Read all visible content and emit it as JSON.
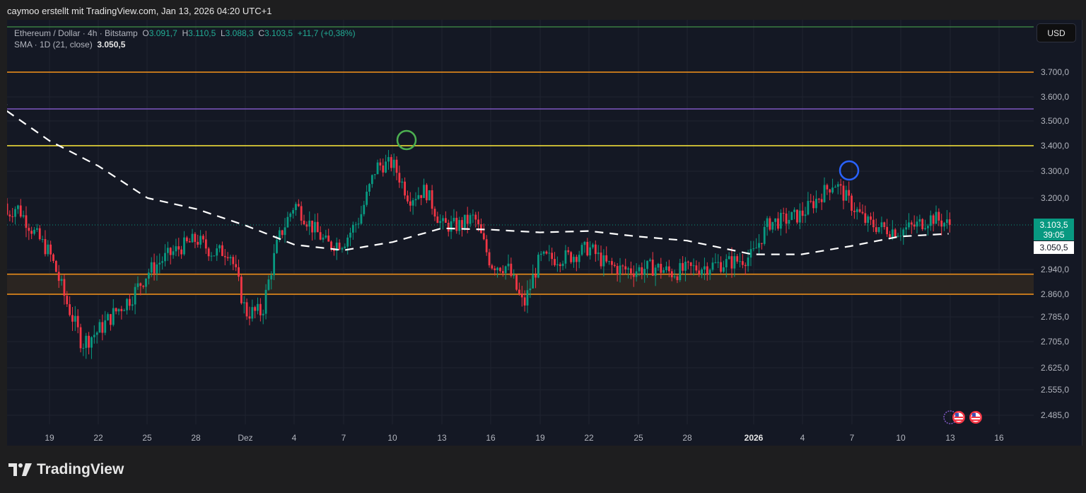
{
  "caption": "caymoo erstellt mit TradingView.com, Jan 13, 2026 04:20 UTC+1",
  "legend": {
    "symbol": "Ethereum / Dollar · 4h · Bitstamp",
    "open_label": "O",
    "open": "3.091,7",
    "high_label": "H",
    "high": "3.110,5",
    "low_label": "L",
    "low": "3.088,3",
    "close_label": "C",
    "close": "3.103,5",
    "change": "+11,7 (+0,38%)",
    "sma_label": "SMA · 1D (21, close)",
    "sma_value": "3.050,5"
  },
  "currency_button": "USD",
  "price_tag": {
    "price": "3.103,5",
    "countdown": "39:05"
  },
  "sma_tag": "3.050,5",
  "logo": "TradingView",
  "colors": {
    "background": "#141824",
    "up": "#089981",
    "down": "#f23645",
    "line_orange": "#f7931a",
    "line_purple": "#7e57c2",
    "line_yellow": "#ffeb3b",
    "zone_fill": "#2b2521",
    "circle_green": "#4caf50",
    "circle_blue": "#2962ff",
    "sma": "#ffffff"
  },
  "chart_data": {
    "type": "candlestick",
    "title": "Ethereum / Dollar · 4h · Bitstamp",
    "xlabel": "",
    "ylabel": "USD",
    "x_ticks": [
      "19",
      "22",
      "25",
      "28",
      "Dez",
      "4",
      "7",
      "10",
      "13",
      "16",
      "19",
      "22",
      "25",
      "28",
      "2026",
      "4",
      "7",
      "10",
      "13",
      "16"
    ],
    "y_ticks": [
      "3.700,0",
      "3.600,0",
      "3.500,0",
      "3.400,0",
      "3.300,0",
      "3.200,0",
      "2.940,0",
      "2.860,0",
      "2.785,0",
      "2.705,0",
      "2.625,0",
      "2.555,0",
      "2.485,0"
    ],
    "ylim": [
      2450,
      3780
    ],
    "last_price": 3103.5,
    "ohlc_last": {
      "open": 3091.7,
      "high": 3110.5,
      "low": 3088.3,
      "close": 3103.5,
      "change": 11.7,
      "change_pct": 0.38
    },
    "horizontal_lines": [
      {
        "price": 3700,
        "color": "orange"
      },
      {
        "price": 3550,
        "color": "purple"
      },
      {
        "price": 3400,
        "color": "yellow"
      }
    ],
    "zone": {
      "from": 2860,
      "to": 2925,
      "color": "orange"
    },
    "markers": [
      {
        "label": "green circle",
        "date": "Dez 10-11",
        "price": 3420
      },
      {
        "label": "blue circle",
        "date": "Jan 6-7",
        "price": 3300
      }
    ],
    "series": [
      {
        "name": "SMA 1D (21, close)",
        "style": "dashed",
        "points": [
          {
            "x": "Nov 16",
            "y": 3560
          },
          {
            "x": "Nov 19",
            "y": 3420
          },
          {
            "x": "Nov 22",
            "y": 3320
          },
          {
            "x": "Nov 25",
            "y": 3200
          },
          {
            "x": "Nov 28",
            "y": 3160
          },
          {
            "x": "Dez 1",
            "y": 3100
          },
          {
            "x": "Dez 4",
            "y": 3030
          },
          {
            "x": "Dez 7",
            "y": 3010
          },
          {
            "x": "Dez 10",
            "y": 3040
          },
          {
            "x": "Dez 13",
            "y": 3090
          },
          {
            "x": "Dez 16",
            "y": 3085
          },
          {
            "x": "Dez 19",
            "y": 3075
          },
          {
            "x": "Dez 22",
            "y": 3080
          },
          {
            "x": "Dez 25",
            "y": 3060
          },
          {
            "x": "Dez 28",
            "y": 3045
          },
          {
            "x": "Jan 1",
            "y": 2995
          },
          {
            "x": "Jan 4",
            "y": 2995
          },
          {
            "x": "Jan 7",
            "y": 3025
          },
          {
            "x": "Jan 10",
            "y": 3060
          },
          {
            "x": "Jan 13",
            "y": 3070
          }
        ]
      },
      {
        "name": "ETH close (approx daily)",
        "points": [
          {
            "x": "Nov 16",
            "y": 3120
          },
          {
            "x": "Nov 17",
            "y": 3170
          },
          {
            "x": "Nov 18",
            "y": 3080
          },
          {
            "x": "Nov 19",
            "y": 3000
          },
          {
            "x": "Nov 20",
            "y": 2840
          },
          {
            "x": "Nov 21",
            "y": 2700
          },
          {
            "x": "Nov 22",
            "y": 2740
          },
          {
            "x": "Nov 23",
            "y": 2800
          },
          {
            "x": "Nov 24",
            "y": 2850
          },
          {
            "x": "Nov 25",
            "y": 2930
          },
          {
            "x": "Nov 26",
            "y": 2980
          },
          {
            "x": "Nov 27",
            "y": 3020
          },
          {
            "x": "Nov 28",
            "y": 3050
          },
          {
            "x": "Nov 29",
            "y": 3000
          },
          {
            "x": "Nov 30",
            "y": 3010
          },
          {
            "x": "Dez 1",
            "y": 2800
          },
          {
            "x": "Dez 2",
            "y": 2800
          },
          {
            "x": "Dez 3",
            "y": 3050
          },
          {
            "x": "Dez 4",
            "y": 3180
          },
          {
            "x": "Dez 5",
            "y": 3100
          },
          {
            "x": "Dez 6",
            "y": 3030
          },
          {
            "x": "Dez 7",
            "y": 3040
          },
          {
            "x": "Dez 8",
            "y": 3130
          },
          {
            "x": "Dez 9",
            "y": 3320
          },
          {
            "x": "Dez 10",
            "y": 3330
          },
          {
            "x": "Dez 11",
            "y": 3200
          },
          {
            "x": "Dez 12",
            "y": 3230
          },
          {
            "x": "Dez 13",
            "y": 3100
          },
          {
            "x": "Dez 14",
            "y": 3100
          },
          {
            "x": "Dez 15",
            "y": 3130
          },
          {
            "x": "Dez 16",
            "y": 2960
          },
          {
            "x": "Dez 17",
            "y": 2950
          },
          {
            "x": "Dez 18",
            "y": 2820
          },
          {
            "x": "Dez 19",
            "y": 2980
          },
          {
            "x": "Dez 20",
            "y": 2980
          },
          {
            "x": "Dez 21",
            "y": 2990
          },
          {
            "x": "Dez 22",
            "y": 3020
          },
          {
            "x": "Dez 23",
            "y": 2960
          },
          {
            "x": "Dez 24",
            "y": 2940
          },
          {
            "x": "Dez 25",
            "y": 2940
          },
          {
            "x": "Dez 26",
            "y": 2950
          },
          {
            "x": "Dez 27",
            "y": 2930
          },
          {
            "x": "Dez 28",
            "y": 2940
          },
          {
            "x": "Dez 29",
            "y": 2950
          },
          {
            "x": "Dez 30",
            "y": 2960
          },
          {
            "x": "Dez 31",
            "y": 2970
          },
          {
            "x": "Jan 1",
            "y": 2990
          },
          {
            "x": "Jan 2",
            "y": 3110
          },
          {
            "x": "Jan 3",
            "y": 3120
          },
          {
            "x": "Jan 4",
            "y": 3140
          },
          {
            "x": "Jan 5",
            "y": 3200
          },
          {
            "x": "Jan 6",
            "y": 3260
          },
          {
            "x": "Jan 7",
            "y": 3180
          },
          {
            "x": "Jan 8",
            "y": 3110
          },
          {
            "x": "Jan 9",
            "y": 3090
          },
          {
            "x": "Jan 10",
            "y": 3080
          },
          {
            "x": "Jan 11",
            "y": 3100
          },
          {
            "x": "Jan 12",
            "y": 3130
          },
          {
            "x": "Jan 13",
            "y": 3103.5
          }
        ]
      }
    ],
    "legend_position": "top-left",
    "grid": true
  }
}
